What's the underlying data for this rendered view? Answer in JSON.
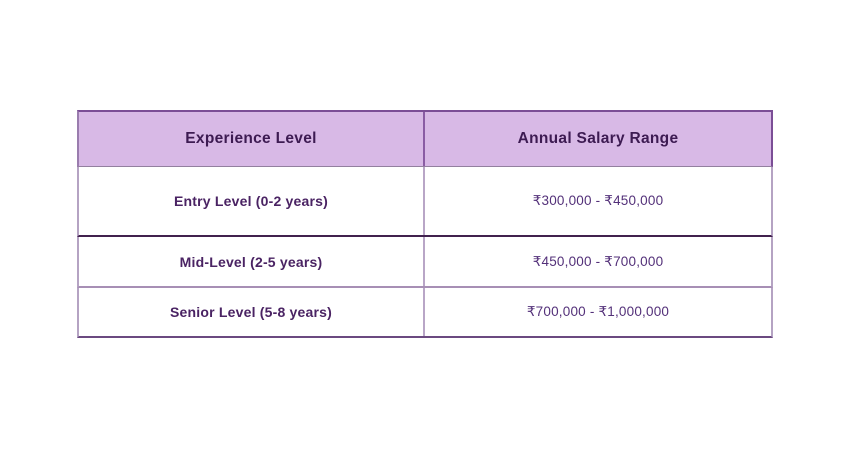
{
  "table": {
    "columns": [
      {
        "label": "Experience Level"
      },
      {
        "label": "Annual Salary Range"
      }
    ],
    "rows": [
      {
        "level": "Entry Level (0-2 years)",
        "salary": "₹300,000 - ₹450,000"
      },
      {
        "level": "Mid-Level (2-5 years)",
        "salary": "₹450,000 - ₹700,000"
      },
      {
        "level": "Senior Level (5-8 years)",
        "salary": "₹700,000 - ₹1,000,000"
      }
    ],
    "colors": {
      "header_background": "#d8b9e6",
      "header_text": "#3d1b52",
      "level_text": "#4a2363",
      "salary_text": "#533079",
      "header_border": "#7b4e96",
      "body_border_light": "#b5a3c3",
      "divider_dark": "#41214e",
      "divider_light": "#a78fb5",
      "bottom_border": "#6b4a80"
    }
  },
  "chart_data": {
    "type": "table",
    "title": "",
    "columns": [
      "Experience Level",
      "Annual Salary Range"
    ],
    "rows": [
      [
        "Entry Level (0-2 years)",
        "₹300,000 - ₹450,000"
      ],
      [
        "Mid-Level (2-5 years)",
        "₹450,000 - ₹700,000"
      ],
      [
        "Senior Level (5-8 years)",
        "₹700,000 - ₹1,000,000"
      ]
    ],
    "salary_ranges_inr": [
      {
        "level": "Entry Level",
        "years_min": 0,
        "years_max": 2,
        "salary_min": 300000,
        "salary_max": 450000
      },
      {
        "level": "Mid-Level",
        "years_min": 2,
        "years_max": 5,
        "salary_min": 450000,
        "salary_max": 700000
      },
      {
        "level": "Senior Level",
        "years_min": 5,
        "years_max": 8,
        "salary_min": 700000,
        "salary_max": 1000000
      }
    ]
  }
}
